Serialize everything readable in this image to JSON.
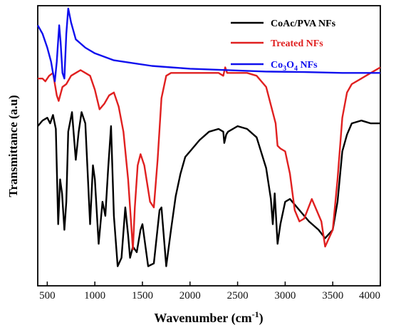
{
  "chart_data": {
    "type": "line",
    "xlabel": "Wavenumber (cm",
    "xlabel_sup": "-1",
    "xlabel_end": ")",
    "ylabel": "Transmittance (a.u)",
    "xlim": [
      400,
      4000
    ],
    "x_ticks": [
      500,
      1000,
      1500,
      2000,
      2500,
      3000,
      3500,
      4000
    ],
    "y_ticks_shown": false,
    "legend_position": "top-right",
    "grid": false,
    "series": [
      {
        "name": "CoAc/PVA NFs",
        "legend_parts": [
          "CoAc/PVA NFs"
        ],
        "color": "#000000",
        "points": [
          [
            400,
            0.43
          ],
          [
            450,
            0.41
          ],
          [
            500,
            0.4
          ],
          [
            530,
            0.42
          ],
          [
            560,
            0.39
          ],
          [
            590,
            0.44
          ],
          [
            615,
            0.78
          ],
          [
            635,
            0.62
          ],
          [
            655,
            0.67
          ],
          [
            680,
            0.8
          ],
          [
            700,
            0.7
          ],
          [
            720,
            0.45
          ],
          [
            760,
            0.38
          ],
          [
            800,
            0.55
          ],
          [
            830,
            0.45
          ],
          [
            860,
            0.38
          ],
          [
            900,
            0.42
          ],
          [
            950,
            0.78
          ],
          [
            980,
            0.57
          ],
          [
            1000,
            0.62
          ],
          [
            1040,
            0.85
          ],
          [
            1080,
            0.7
          ],
          [
            1110,
            0.75
          ],
          [
            1140,
            0.58
          ],
          [
            1170,
            0.43
          ],
          [
            1200,
            0.75
          ],
          [
            1240,
            0.93
          ],
          [
            1280,
            0.9
          ],
          [
            1320,
            0.72
          ],
          [
            1350,
            0.82
          ],
          [
            1370,
            0.9
          ],
          [
            1400,
            0.86
          ],
          [
            1440,
            0.88
          ],
          [
            1480,
            0.8
          ],
          [
            1500,
            0.78
          ],
          [
            1560,
            0.93
          ],
          [
            1620,
            0.92
          ],
          [
            1680,
            0.73
          ],
          [
            1700,
            0.72
          ],
          [
            1750,
            0.93
          ],
          [
            1800,
            0.8
          ],
          [
            1850,
            0.68
          ],
          [
            1900,
            0.6
          ],
          [
            1950,
            0.54
          ],
          [
            2000,
            0.52
          ],
          [
            2100,
            0.48
          ],
          [
            2200,
            0.45
          ],
          [
            2300,
            0.44
          ],
          [
            2350,
            0.45
          ],
          [
            2360,
            0.49
          ],
          [
            2380,
            0.46
          ],
          [
            2400,
            0.45
          ],
          [
            2500,
            0.43
          ],
          [
            2600,
            0.44
          ],
          [
            2700,
            0.47
          ],
          [
            2800,
            0.58
          ],
          [
            2850,
            0.69
          ],
          [
            2870,
            0.78
          ],
          [
            2890,
            0.67
          ],
          [
            2920,
            0.85
          ],
          [
            2950,
            0.78
          ],
          [
            3000,
            0.7
          ],
          [
            3050,
            0.69
          ],
          [
            3150,
            0.73
          ],
          [
            3250,
            0.77
          ],
          [
            3350,
            0.8
          ],
          [
            3420,
            0.83
          ],
          [
            3500,
            0.8
          ],
          [
            3550,
            0.7
          ],
          [
            3600,
            0.52
          ],
          [
            3650,
            0.46
          ],
          [
            3700,
            0.42
          ],
          [
            3800,
            0.41
          ],
          [
            3900,
            0.42
          ],
          [
            3950,
            0.42
          ],
          [
            4000,
            0.42
          ]
        ]
      },
      {
        "name": "Treated NFs",
        "legend_parts": [
          "Treated NFs"
        ],
        "color": "#e02020",
        "points": [
          [
            400,
            0.26
          ],
          [
            450,
            0.26
          ],
          [
            480,
            0.27
          ],
          [
            520,
            0.25
          ],
          [
            560,
            0.24
          ],
          [
            600,
            0.32
          ],
          [
            620,
            0.34
          ],
          [
            660,
            0.29
          ],
          [
            700,
            0.28
          ],
          [
            750,
            0.25
          ],
          [
            800,
            0.24
          ],
          [
            850,
            0.23
          ],
          [
            900,
            0.24
          ],
          [
            950,
            0.25
          ],
          [
            1000,
            0.3
          ],
          [
            1050,
            0.37
          ],
          [
            1100,
            0.35
          ],
          [
            1150,
            0.32
          ],
          [
            1200,
            0.31
          ],
          [
            1250,
            0.36
          ],
          [
            1300,
            0.45
          ],
          [
            1350,
            0.62
          ],
          [
            1400,
            0.87
          ],
          [
            1420,
            0.72
          ],
          [
            1450,
            0.57
          ],
          [
            1480,
            0.53
          ],
          [
            1520,
            0.57
          ],
          [
            1580,
            0.7
          ],
          [
            1620,
            0.72
          ],
          [
            1660,
            0.55
          ],
          [
            1700,
            0.33
          ],
          [
            1750,
            0.25
          ],
          [
            1800,
            0.24
          ],
          [
            1900,
            0.24
          ],
          [
            2000,
            0.24
          ],
          [
            2100,
            0.24
          ],
          [
            2200,
            0.24
          ],
          [
            2300,
            0.24
          ],
          [
            2350,
            0.25
          ],
          [
            2370,
            0.22
          ],
          [
            2390,
            0.24
          ],
          [
            2500,
            0.24
          ],
          [
            2600,
            0.24
          ],
          [
            2700,
            0.25
          ],
          [
            2800,
            0.29
          ],
          [
            2900,
            0.42
          ],
          [
            2920,
            0.5
          ],
          [
            2950,
            0.51
          ],
          [
            3000,
            0.52
          ],
          [
            3050,
            0.6
          ],
          [
            3100,
            0.73
          ],
          [
            3150,
            0.77
          ],
          [
            3200,
            0.76
          ],
          [
            3280,
            0.69
          ],
          [
            3330,
            0.73
          ],
          [
            3380,
            0.77
          ],
          [
            3420,
            0.86
          ],
          [
            3460,
            0.83
          ],
          [
            3500,
            0.8
          ],
          [
            3550,
            0.62
          ],
          [
            3600,
            0.4
          ],
          [
            3650,
            0.31
          ],
          [
            3700,
            0.28
          ],
          [
            3800,
            0.26
          ],
          [
            3900,
            0.24
          ],
          [
            4000,
            0.22
          ]
        ]
      },
      {
        "name": "Co3O4 NFs",
        "legend_parts": [
          "Co",
          "3",
          "O",
          "4",
          " NFs"
        ],
        "color": "#1010ee",
        "points": [
          [
            400,
            0.07
          ],
          [
            450,
            0.1
          ],
          [
            500,
            0.15
          ],
          [
            540,
            0.2
          ],
          [
            560,
            0.24
          ],
          [
            580,
            0.27
          ],
          [
            600,
            0.2
          ],
          [
            625,
            0.07
          ],
          [
            640,
            0.13
          ],
          [
            660,
            0.24
          ],
          [
            680,
            0.26
          ],
          [
            700,
            0.1
          ],
          [
            720,
            0.01
          ],
          [
            750,
            0.06
          ],
          [
            800,
            0.12
          ],
          [
            900,
            0.15
          ],
          [
            1000,
            0.17
          ],
          [
            1200,
            0.195
          ],
          [
            1400,
            0.205
          ],
          [
            1600,
            0.215
          ],
          [
            1800,
            0.22
          ],
          [
            2000,
            0.225
          ],
          [
            2400,
            0.23
          ],
          [
            2800,
            0.235
          ],
          [
            3200,
            0.237
          ],
          [
            3600,
            0.24
          ],
          [
            4000,
            0.24
          ]
        ]
      }
    ]
  }
}
